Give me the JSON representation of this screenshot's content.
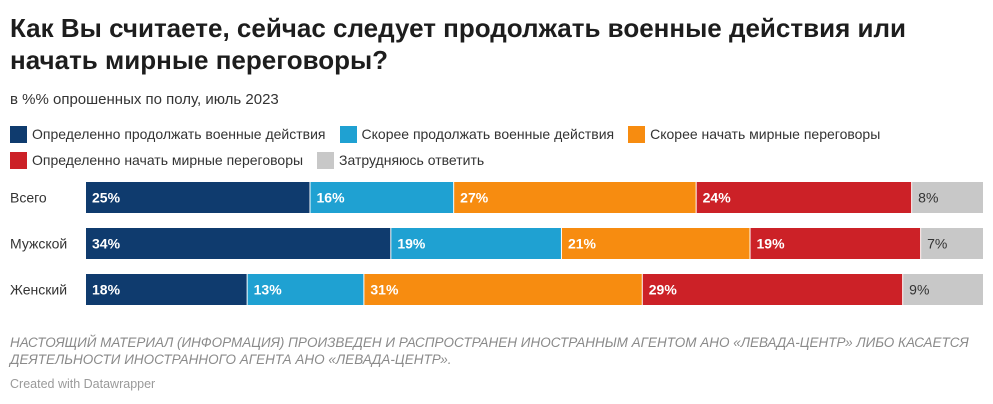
{
  "title": "Как Вы считаете, сейчас следует продолжать военные действия или начать мирные переговоры?",
  "subtitle": "в %% опрошенных по полу, июль 2023",
  "footnote": "НАСТОЯЩИЙ МАТЕРИАЛ (ИНФОРМАЦИЯ) ПРОИЗВЕДЕН И РАСПРОСТРАНЕН ИНОСТРАННЫМ АГЕНТОМ АНО «ЛЕВАДА-ЦЕНТР» ЛИБО КАСАЕТСЯ ДЕЯТЕЛЬНОСТИ ИНОСТРАННОГО АГЕНТА АНО «ЛЕВАДА-ЦЕНТР».",
  "credit": "Created with Datawrapper",
  "chart_data": {
    "type": "bar",
    "stacked": true,
    "orientation": "horizontal",
    "normalized": true,
    "categories": [
      "Всего",
      "Мужской",
      "Женский"
    ],
    "series": [
      {
        "name": "Определенно продолжать военные действия",
        "color": "#0f3b6e",
        "label_color": "#ffffff",
        "values": [
          25,
          34,
          18
        ]
      },
      {
        "name": "Скорее продолжать военные действия",
        "color": "#1fa1d2",
        "label_color": "#ffffff",
        "values": [
          16,
          19,
          13
        ]
      },
      {
        "name": "Скорее начать мирные переговоры",
        "color": "#f78c10",
        "label_color": "#ffffff",
        "values": [
          27,
          21,
          31
        ]
      },
      {
        "name": "Определенно начать мирные переговоры",
        "color": "#cc2127",
        "label_color": "#ffffff",
        "values": [
          24,
          19,
          29
        ]
      },
      {
        "name": "Затрудняюсь ответить",
        "color": "#c8c8c8",
        "label_color": "#333333",
        "values": [
          8,
          7,
          9
        ]
      }
    ],
    "value_suffix": "%",
    "legend_position": "top-left",
    "grid": false
  }
}
